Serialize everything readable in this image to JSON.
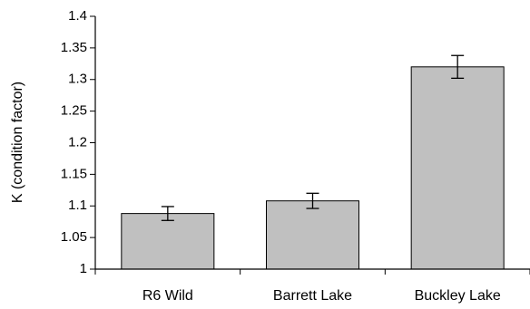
{
  "chart_data": {
    "type": "bar",
    "title": "",
    "xlabel": "",
    "ylabel": "K (condition factor)",
    "ylim": [
      1,
      1.4
    ],
    "yticks": [
      "1",
      "1.05",
      "1.1",
      "1.15",
      "1.2",
      "1.25",
      "1.3",
      "1.35",
      "1.4"
    ],
    "ytick_values": [
      1,
      1.05,
      1.1,
      1.15,
      1.2,
      1.25,
      1.3,
      1.35,
      1.4
    ],
    "categories": [
      "R6 Wild",
      "Barrett Lake",
      "Buckley Lake"
    ],
    "values": [
      1.088,
      1.108,
      1.32
    ],
    "error": [
      0.011,
      0.012,
      0.018
    ],
    "grid": false,
    "bar_color": "#c0c0c0",
    "bar_edge_color": "#000000"
  }
}
